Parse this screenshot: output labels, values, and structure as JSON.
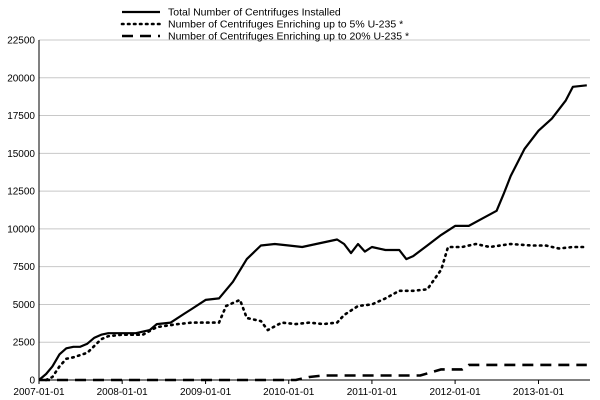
{
  "chart_data": {
    "type": "line",
    "title": "",
    "xlabel": "",
    "ylabel": "",
    "ylim": [
      0,
      22500
    ],
    "xlim": [
      "2007-01-01",
      "2013-08-15"
    ],
    "grid": "horizontal",
    "legend_position": "top-center",
    "yticks": [
      0,
      2500,
      5000,
      7500,
      10000,
      12500,
      15000,
      17500,
      20000,
      22500
    ],
    "ytick_labels": [
      "0",
      "2500",
      "5000",
      "7500",
      "10000",
      "12500",
      "15000",
      "17500",
      "20000",
      "22500"
    ],
    "xtick_labels": [
      "2007-01-01",
      "2008-01-01",
      "2009-01-01",
      "2010-01-01",
      "2011-01-01",
      "2012-01-01",
      "2013-01-01"
    ],
    "series": [
      {
        "name": "Total Number of Centrifuges Installed",
        "style": "solid",
        "color": "#000000",
        "points": [
          [
            "2007-01-01",
            0
          ],
          [
            "2007-02-01",
            400
          ],
          [
            "2007-03-01",
            900
          ],
          [
            "2007-04-01",
            1700
          ],
          [
            "2007-05-01",
            2100
          ],
          [
            "2007-06-01",
            2200
          ],
          [
            "2007-07-01",
            2200
          ],
          [
            "2007-08-01",
            2400
          ],
          [
            "2007-09-01",
            2800
          ],
          [
            "2007-10-01",
            3000
          ],
          [
            "2007-11-01",
            3100
          ],
          [
            "2008-01-01",
            3100
          ],
          [
            "2008-03-01",
            3100
          ],
          [
            "2008-05-01",
            3300
          ],
          [
            "2008-06-01",
            3700
          ],
          [
            "2008-08-01",
            3800
          ],
          [
            "2008-10-01",
            4400
          ],
          [
            "2008-11-01",
            4700
          ],
          [
            "2009-01-01",
            5300
          ],
          [
            "2009-03-01",
            5400
          ],
          [
            "2009-05-01",
            6500
          ],
          [
            "2009-07-01",
            8000
          ],
          [
            "2009-09-01",
            8900
          ],
          [
            "2009-11-01",
            9000
          ],
          [
            "2010-01-01",
            8900
          ],
          [
            "2010-03-01",
            8800
          ],
          [
            "2010-05-01",
            9000
          ],
          [
            "2010-08-01",
            9300
          ],
          [
            "2010-09-01",
            9000
          ],
          [
            "2010-10-01",
            8400
          ],
          [
            "2010-11-01",
            9000
          ],
          [
            "2010-12-01",
            8500
          ],
          [
            "2011-01-01",
            8800
          ],
          [
            "2011-03-01",
            8600
          ],
          [
            "2011-05-01",
            8600
          ],
          [
            "2011-06-01",
            8000
          ],
          [
            "2011-07-01",
            8200
          ],
          [
            "2011-09-01",
            8900
          ],
          [
            "2011-11-01",
            9600
          ],
          [
            "2012-01-01",
            10200
          ],
          [
            "2012-03-01",
            10200
          ],
          [
            "2012-05-01",
            10700
          ],
          [
            "2012-07-01",
            11200
          ],
          [
            "2012-08-01",
            12300
          ],
          [
            "2012-09-01",
            13500
          ],
          [
            "2012-11-01",
            15300
          ],
          [
            "2013-01-01",
            16500
          ],
          [
            "2013-03-01",
            17300
          ],
          [
            "2013-05-01",
            18500
          ],
          [
            "2013-06-01",
            19400
          ],
          [
            "2013-08-01",
            19500
          ]
        ]
      },
      {
        "name": "Number of Centrifuges Enriching up to 5% U-235 *",
        "style": "dotted",
        "color": "#000000",
        "points": [
          [
            "2007-02-01",
            0
          ],
          [
            "2007-03-01",
            200
          ],
          [
            "2007-04-01",
            900
          ],
          [
            "2007-05-01",
            1400
          ],
          [
            "2007-06-01",
            1500
          ],
          [
            "2007-08-01",
            1800
          ],
          [
            "2007-10-01",
            2700
          ],
          [
            "2007-11-01",
            2900
          ],
          [
            "2008-01-01",
            3000
          ],
          [
            "2008-04-01",
            3000
          ],
          [
            "2008-06-01",
            3500
          ],
          [
            "2008-09-01",
            3700
          ],
          [
            "2008-11-01",
            3800
          ],
          [
            "2009-01-01",
            3800
          ],
          [
            "2009-03-01",
            3800
          ],
          [
            "2009-04-01",
            4900
          ],
          [
            "2009-06-01",
            5300
          ],
          [
            "2009-07-01",
            4100
          ],
          [
            "2009-09-01",
            3900
          ],
          [
            "2009-10-01",
            3300
          ],
          [
            "2009-12-01",
            3800
          ],
          [
            "2010-02-01",
            3700
          ],
          [
            "2010-04-01",
            3800
          ],
          [
            "2010-06-01",
            3700
          ],
          [
            "2010-08-01",
            3800
          ],
          [
            "2010-09-01",
            4300
          ],
          [
            "2010-11-01",
            4900
          ],
          [
            "2011-01-01",
            5000
          ],
          [
            "2011-03-01",
            5400
          ],
          [
            "2011-05-01",
            5900
          ],
          [
            "2011-07-01",
            5900
          ],
          [
            "2011-09-01",
            6000
          ],
          [
            "2011-11-01",
            7300
          ],
          [
            "2011-12-01",
            8800
          ],
          [
            "2012-02-01",
            8800
          ],
          [
            "2012-04-01",
            9000
          ],
          [
            "2012-06-01",
            8800
          ],
          [
            "2012-09-01",
            9000
          ],
          [
            "2012-12-01",
            8900
          ],
          [
            "2013-02-01",
            8900
          ],
          [
            "2013-04-01",
            8700
          ],
          [
            "2013-06-01",
            8800
          ],
          [
            "2013-08-01",
            8800
          ]
        ]
      },
      {
        "name": "Number of Centrifuges Enriching up to 20% U-235 *",
        "style": "dashed",
        "color": "#000000",
        "points": [
          [
            "2007-01-01",
            0
          ],
          [
            "2010-02-01",
            0
          ],
          [
            "2010-04-01",
            200
          ],
          [
            "2010-06-01",
            300
          ],
          [
            "2011-08-01",
            300
          ],
          [
            "2011-11-01",
            700
          ],
          [
            "2012-02-01",
            700
          ],
          [
            "2012-03-01",
            1000
          ],
          [
            "2013-08-01",
            1000
          ]
        ]
      }
    ]
  }
}
